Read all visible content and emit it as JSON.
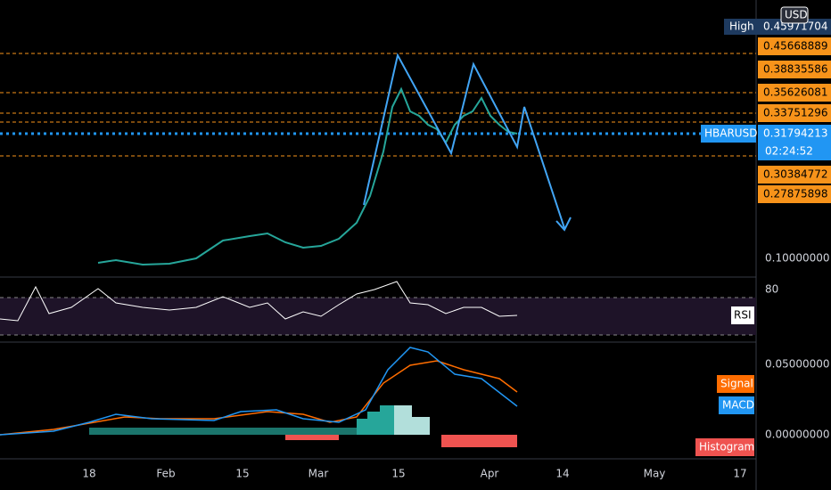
{
  "price_axis": {
    "unit": "USD",
    "high_label": "High",
    "high": "0.45971704",
    "levels": [
      "0.45668889",
      "0.38835586",
      "0.35626081",
      "0.33751296",
      "0.30384772",
      "0.27875898"
    ],
    "symbol": "HBARUSD",
    "last": "0.31794213",
    "countdown": "02:24:52",
    "scale": [
      "0.10000000"
    ]
  },
  "rsi_pane": {
    "name": "RSI",
    "scale": [
      "80"
    ]
  },
  "macd_pane": {
    "legend": [
      "Signal",
      "MACD",
      "Histogram"
    ],
    "scale": [
      "0.05000000",
      "0.00000000"
    ]
  },
  "time_axis": [
    "18",
    "Feb",
    "15",
    "Mar",
    "15",
    "Apr",
    "14",
    "May",
    "17"
  ]
}
